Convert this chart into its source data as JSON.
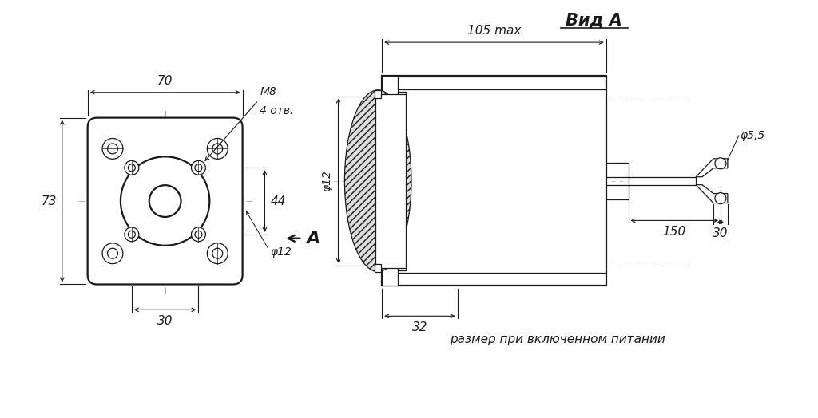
{
  "bg_color": "#ffffff",
  "lc": "#1a1a1a",
  "cc": "#aaaaaa",
  "title": "Вид A",
  "label_70": "70",
  "label_73": "73",
  "label_30_bottom": "30",
  "label_44": "44",
  "label_M8": "M8",
  "label_4otv": "4 отв.",
  "label_phi12": "φ12",
  "label_105": "105 max",
  "label_150": "150",
  "label_phi55": "φ5,5",
  "label_32": "32",
  "label_30_right": "30",
  "label_A": "A",
  "caption": "размер при включенном питании"
}
